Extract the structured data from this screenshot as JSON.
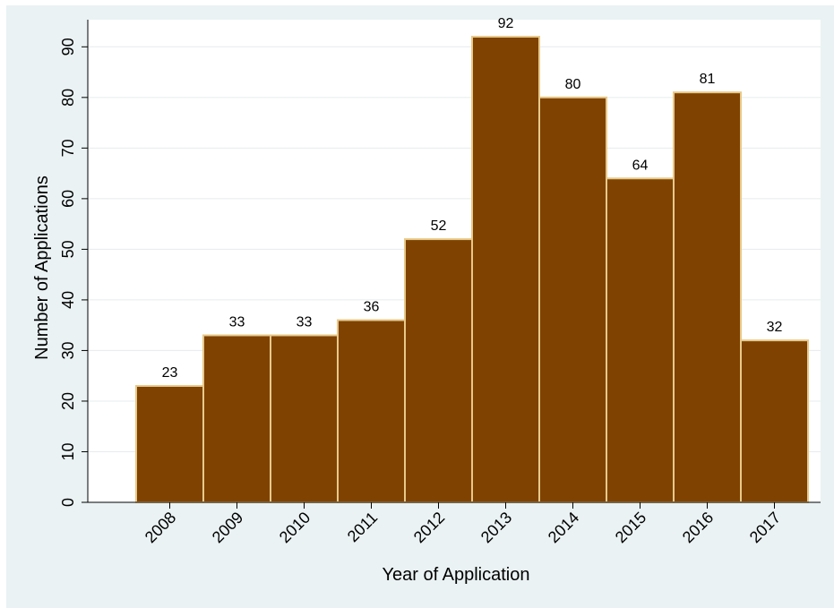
{
  "chart_data": {
    "type": "bar",
    "title": "",
    "xlabel": "Year of Application",
    "ylabel": "Number of Applications",
    "categories": [
      "2008",
      "2009",
      "2010",
      "2011",
      "2012",
      "2013",
      "2014",
      "2015",
      "2016",
      "2017"
    ],
    "values": [
      23,
      33,
      33,
      36,
      52,
      92,
      80,
      64,
      81,
      32
    ],
    "ylim": [
      0,
      92
    ],
    "yticks": [
      0,
      10,
      20,
      30,
      40,
      50,
      60,
      70,
      80,
      90
    ],
    "grid": true,
    "legend": "none",
    "colors": {
      "bar_fill": "#7f4200",
      "bar_stroke": "#e8c98a",
      "plot_background": "#ffffff",
      "outer_background": "#eaf2f3",
      "grid": "#e6ecee"
    }
  }
}
